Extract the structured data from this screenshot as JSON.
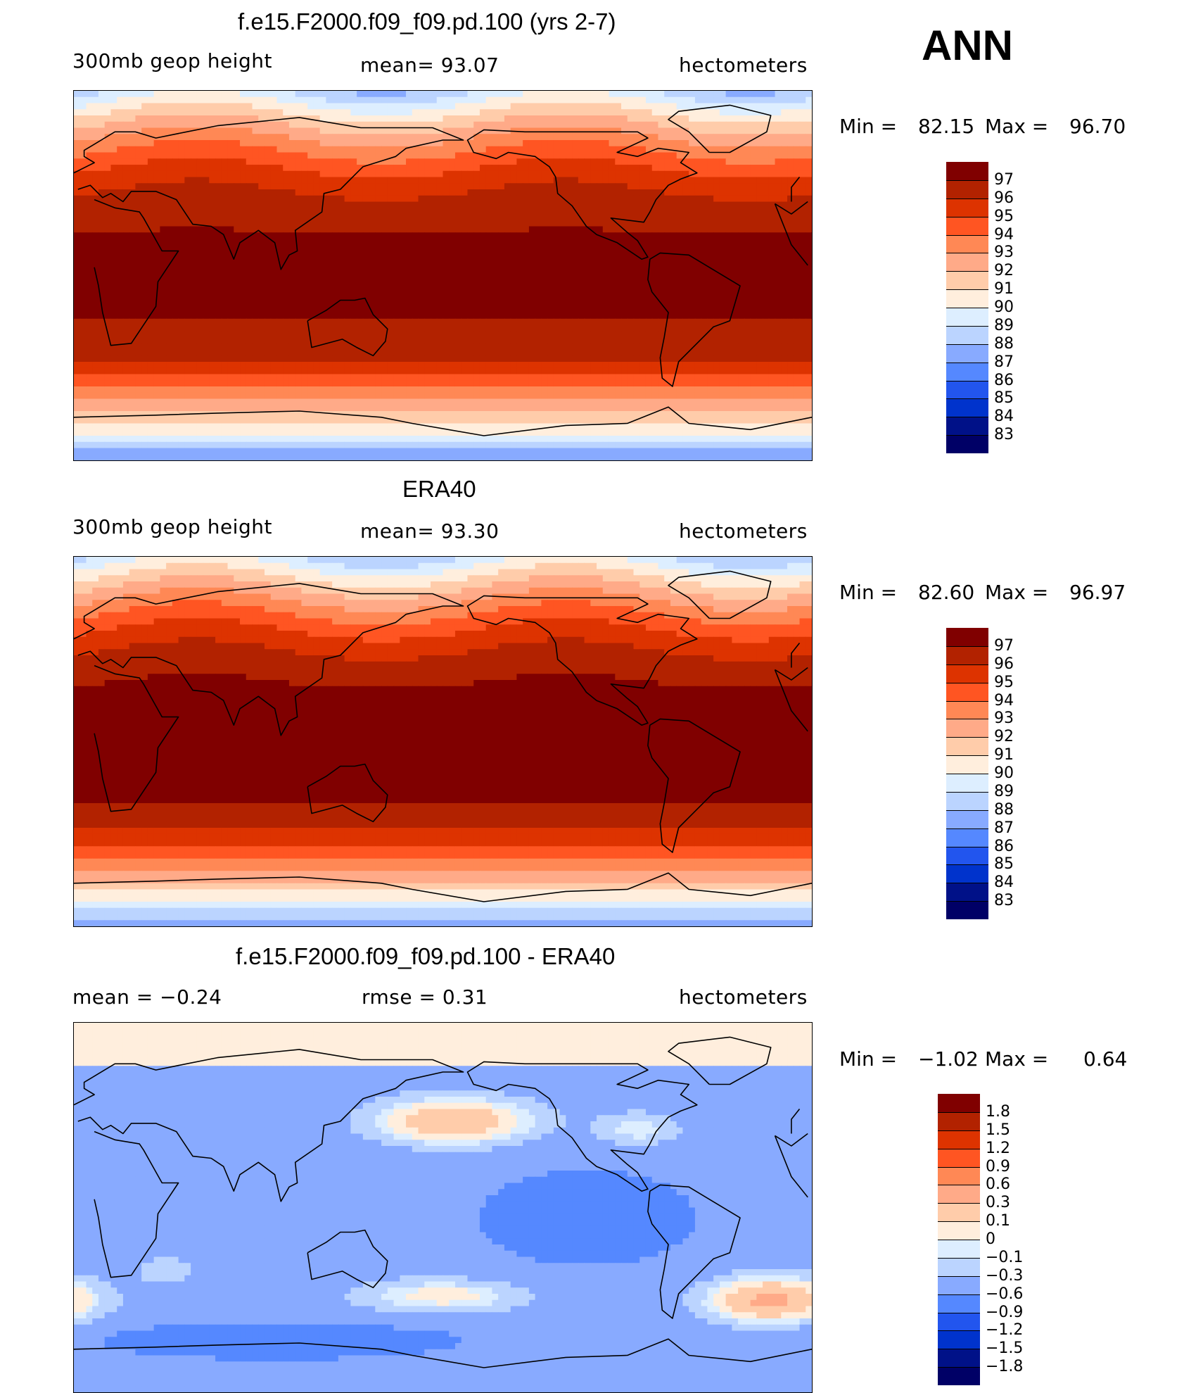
{
  "season": "ANN",
  "units": "hectometers",
  "panels": [
    {
      "title": "f.e15.F2000.f09_f09.pd.100 (yrs 2-7)",
      "left_label": "300mb  geop  height",
      "center_label": "mean=   93.07",
      "right_label": "hectometers",
      "min_label": "Min  =",
      "min_value": "82.15",
      "max_label": "Max  =",
      "max_value": "96.70",
      "levels": [
        "97",
        "96",
        "95",
        "94",
        "93",
        "92",
        "91",
        "90",
        "89",
        "88",
        "87",
        "86",
        "85",
        "84",
        "83"
      ],
      "colors": [
        "#800000",
        "#b22200",
        "#dd3300",
        "#ff5522",
        "#ff8855",
        "#ffaa88",
        "#ffccaa",
        "#ffeedd",
        "#ddeeff",
        "#bbd4ff",
        "#88aaff",
        "#5588ff",
        "#2255ee",
        "#0033cc",
        "#001188",
        "#000066"
      ],
      "field": "model"
    },
    {
      "title": "ERA40",
      "left_label": "300mb  geop  height",
      "center_label": "mean=   93.30",
      "right_label": "hectometers",
      "min_label": "Min  =",
      "min_value": "82.60",
      "max_label": "Max  =",
      "max_value": "96.97",
      "levels": [
        "97",
        "96",
        "95",
        "94",
        "93",
        "92",
        "91",
        "90",
        "89",
        "88",
        "87",
        "86",
        "85",
        "84",
        "83"
      ],
      "colors": [
        "#800000",
        "#b22200",
        "#dd3300",
        "#ff5522",
        "#ff8855",
        "#ffaa88",
        "#ffccaa",
        "#ffeedd",
        "#ddeeff",
        "#bbd4ff",
        "#88aaff",
        "#5588ff",
        "#2255ee",
        "#0033cc",
        "#001188",
        "#000066"
      ],
      "field": "obs"
    },
    {
      "title": "f.e15.F2000.f09_f09.pd.100 - ERA40",
      "left_label": "mean  =    −0.24",
      "center_label": "rmse  =     0.31",
      "right_label": "hectometers",
      "min_label": "Min  =",
      "min_value": "−1.02",
      "max_label": "Max  =",
      "max_value": "0.64",
      "levels": [
        "1.8",
        "1.5",
        "1.2",
        "0.9",
        "0.6",
        "0.3",
        "0.1",
        "0",
        "−0.1",
        "−0.3",
        "−0.6",
        "−0.9",
        "−1.2",
        "−1.5",
        "−1.8"
      ],
      "colors": [
        "#800000",
        "#b22200",
        "#dd3300",
        "#ff5522",
        "#ff8855",
        "#ffaa88",
        "#ffccaa",
        "#ffeedd",
        "#ddeeff",
        "#bbd4ff",
        "#88aaff",
        "#5588ff",
        "#2255ee",
        "#0033cc",
        "#001188",
        "#000066"
      ],
      "field": "diff"
    }
  ]
}
